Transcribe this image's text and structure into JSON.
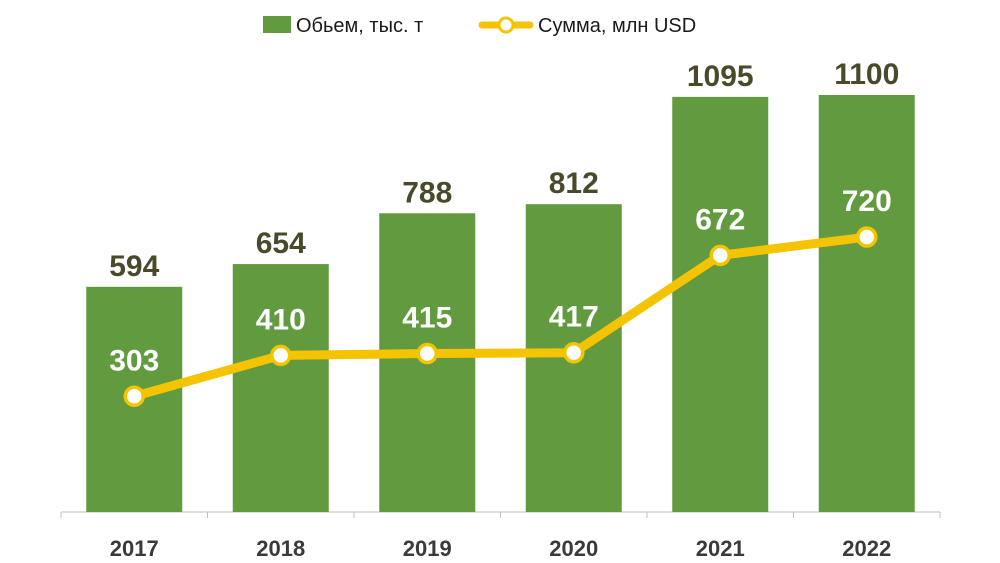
{
  "chart_data": {
    "type": "bar",
    "categories": [
      "2017",
      "2018",
      "2019",
      "2020",
      "2021",
      "2022"
    ],
    "series": [
      {
        "name": "Обьем, тыс. т",
        "type": "bar",
        "color": "#629a3f",
        "values": [
          594,
          654,
          788,
          812,
          1095,
          1100
        ]
      },
      {
        "name": "Сумма, млн USD",
        "type": "line",
        "color": "#f5c400",
        "values": [
          303,
          410,
          415,
          417,
          672,
          720
        ]
      }
    ],
    "title": "",
    "xlabel": "",
    "ylabel": "",
    "grid": false,
    "legend": "top-center"
  }
}
